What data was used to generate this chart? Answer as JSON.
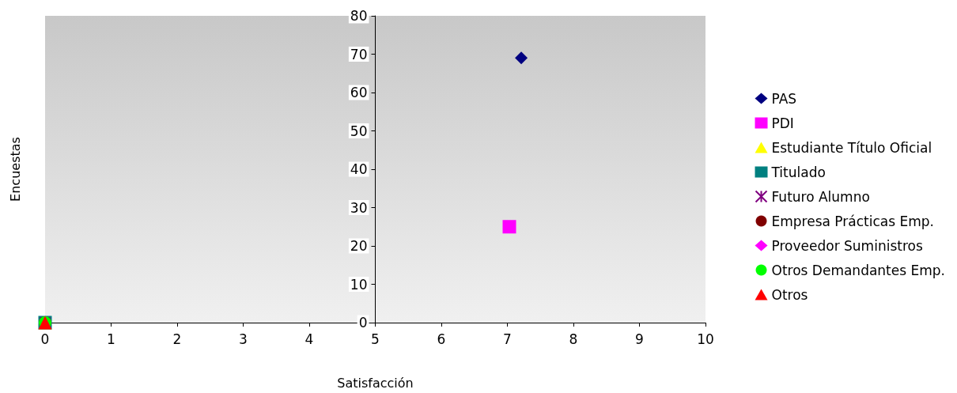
{
  "chart_data": {
    "type": "scatter",
    "xlabel": "Satisfacción",
    "ylabel": "Encuestas",
    "xlim": [
      0,
      10
    ],
    "xticks": [
      0,
      1,
      2,
      3,
      4,
      5,
      6,
      7,
      8,
      9,
      10
    ],
    "ylim": [
      0,
      80
    ],
    "yticks": [
      0,
      10,
      20,
      30,
      40,
      50,
      60,
      70,
      80
    ],
    "grid": false,
    "legend": "right",
    "series": [
      {
        "name": "PAS",
        "color": "#000080",
        "marker": "diamond",
        "x": [
          7.21
        ],
        "values": [
          69
        ]
      },
      {
        "name": "PDI",
        "color": "#ff00ff",
        "marker": "square",
        "x": [
          7.03
        ],
        "values": [
          25
        ]
      },
      {
        "name": "Estudiante Título Oficial",
        "color": "#ffff00",
        "marker": "triangle",
        "x": [
          0
        ],
        "values": [
          0
        ]
      },
      {
        "name": "Titulado",
        "color": "#008080",
        "marker": "square",
        "x": [
          0
        ],
        "values": [
          0
        ]
      },
      {
        "name": "Futuro Alumno",
        "color": "#800080",
        "marker": "cross",
        "x": [
          0
        ],
        "values": [
          0
        ]
      },
      {
        "name": "Empresa Prácticas Emp.",
        "color": "#800000",
        "marker": "circle",
        "x": [
          0
        ],
        "values": [
          0
        ]
      },
      {
        "name": "Proveedor Suministros",
        "color": "#ff00ff",
        "marker": "diamond",
        "x": [
          null
        ],
        "values": [
          null
        ]
      },
      {
        "name": "Otros Demandantes Emp.",
        "color": "#00ff00",
        "marker": "circle",
        "x": [
          0
        ],
        "values": [
          0
        ]
      },
      {
        "name": "Otros",
        "color": "#ff0000",
        "marker": "triangle",
        "x": [
          0
        ],
        "values": [
          0
        ]
      }
    ]
  }
}
